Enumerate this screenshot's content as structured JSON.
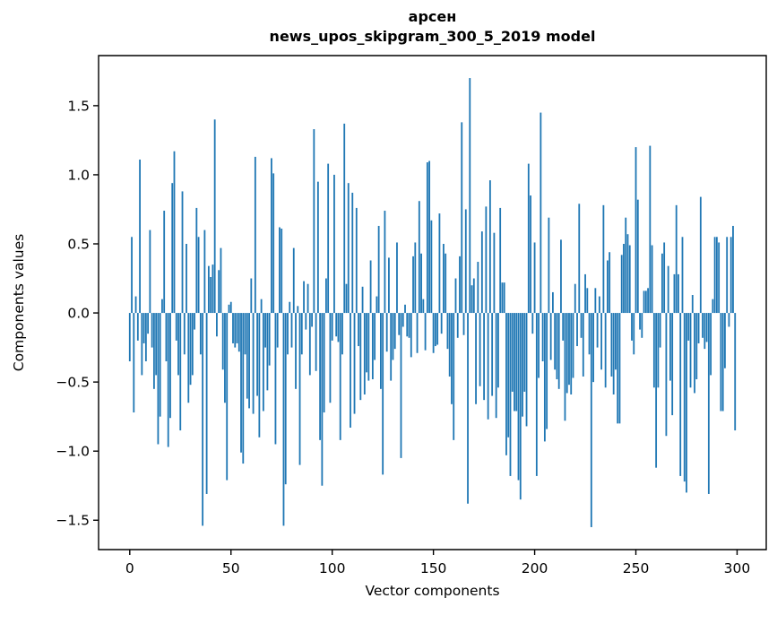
{
  "page": {
    "background": "#ffffff"
  },
  "chart_data": {
    "type": "bar",
    "title": "арсен",
    "subtitle": "news_upos_skipgram_300_5_2019 model",
    "xlabel": "Vector components",
    "ylabel": "Components values",
    "bar_color": "#1f77b4",
    "axis_color": "#000000",
    "grid": false,
    "legend_position": "none",
    "n_components": 300,
    "x_ticks": [
      0,
      50,
      100,
      150,
      200,
      250,
      300
    ],
    "y_ticks": [
      1.5,
      1.0,
      0.5,
      0.0,
      -0.5,
      -1.0,
      -1.5
    ],
    "y_tick_labels": [
      "1.5",
      "1.0",
      "0.5",
      "0.0",
      "−0.5",
      "−1.0",
      "−1.5"
    ],
    "xlim": [
      -15.4,
      314.4
    ],
    "ylim": [
      -1.7125,
      1.8625
    ],
    "values": [
      -0.35,
      0.55,
      -0.72,
      0.12,
      -0.2,
      1.11,
      -0.45,
      -0.22,
      -0.35,
      -0.15,
      0.6,
      -0.25,
      -0.55,
      -0.45,
      -0.95,
      -0.75,
      0.1,
      0.74,
      -0.35,
      -0.97,
      -0.76,
      0.94,
      1.17,
      -0.2,
      -0.45,
      -0.85,
      0.88,
      -0.3,
      0.5,
      -0.65,
      -0.52,
      -0.45,
      -0.12,
      0.76,
      0.55,
      -0.3,
      -1.54,
      0.6,
      -1.31,
      0.34,
      0.26,
      0.35,
      1.4,
      -0.17,
      0.31,
      0.47,
      -0.41,
      -0.65,
      -1.21,
      0.06,
      0.08,
      -0.22,
      -0.25,
      -0.22,
      -0.28,
      -1.01,
      -1.09,
      -0.3,
      -0.62,
      -0.69,
      0.25,
      -0.73,
      1.13,
      -0.6,
      -0.9,
      0.1,
      -0.71,
      -0.25,
      -0.56,
      -0.38,
      1.12,
      1.01,
      -0.95,
      -0.25,
      0.62,
      0.61,
      -1.54,
      -1.24,
      -0.3,
      0.08,
      -0.25,
      0.47,
      -0.55,
      0.05,
      -1.1,
      -0.3,
      0.23,
      -0.12,
      0.21,
      -0.45,
      -0.1,
      1.33,
      -0.42,
      0.95,
      -0.92,
      -1.25,
      -0.72,
      0.25,
      1.08,
      -0.65,
      -0.2,
      1.0,
      -0.17,
      -0.21,
      -0.92,
      -0.3,
      1.37,
      0.21,
      0.94,
      -0.83,
      0.87,
      -0.73,
      0.76,
      -0.24,
      -0.63,
      0.19,
      -0.59,
      -0.43,
      -0.49,
      0.38,
      -0.48,
      -0.34,
      0.12,
      0.63,
      -0.55,
      -1.17,
      0.74,
      -0.28,
      0.4,
      -0.49,
      -0.34,
      -0.26,
      0.51,
      -0.16,
      -1.05,
      -0.1,
      0.06,
      -0.17,
      -0.18,
      -0.32,
      0.41,
      0.51,
      -0.29,
      0.81,
      0.43,
      0.1,
      -0.27,
      1.09,
      1.1,
      0.67,
      -0.29,
      -0.24,
      -0.23,
      0.72,
      -0.15,
      0.5,
      0.43,
      -0.26,
      -0.46,
      -0.66,
      -0.92,
      0.25,
      -0.18,
      0.41,
      1.38,
      -0.16,
      0.75,
      -1.38,
      1.7,
      0.2,
      0.25,
      -0.66,
      0.37,
      -0.53,
      0.59,
      -0.63,
      0.77,
      -0.77,
      0.96,
      -0.6,
      0.58,
      -0.76,
      -0.54,
      0.76,
      0.22,
      0.22,
      -1.03,
      -0.9,
      -1.18,
      -0.57,
      -0.71,
      -0.71,
      -1.21,
      -1.35,
      -0.75,
      -0.57,
      -0.82,
      1.08,
      0.85,
      -0.15,
      0.51,
      -1.18,
      -0.47,
      1.45,
      -0.35,
      -0.93,
      -0.84,
      0.69,
      -0.34,
      0.15,
      -0.41,
      -0.48,
      -0.55,
      0.53,
      -0.2,
      -0.78,
      -0.58,
      -0.52,
      -0.59,
      -0.47,
      0.21,
      -0.24,
      0.79,
      -0.18,
      -0.46,
      0.28,
      0.18,
      -0.3,
      -1.55,
      -0.5,
      0.18,
      -0.25,
      0.12,
      -0.41,
      0.78,
      -0.54,
      0.38,
      0.44,
      -0.46,
      -0.59,
      -0.41,
      -0.8,
      -0.8,
      0.42,
      0.5,
      0.69,
      0.57,
      0.49,
      -0.2,
      -0.3,
      1.2,
      0.82,
      -0.12,
      -0.18,
      0.16,
      0.16,
      0.18,
      1.21,
      0.49,
      -0.54,
      -1.12,
      -0.54,
      -0.25,
      0.43,
      0.51,
      -0.89,
      0.34,
      -0.49,
      -0.74,
      0.28,
      0.78,
      0.28,
      -1.18,
      0.55,
      -1.22,
      -1.3,
      -0.2,
      -0.54,
      0.13,
      -0.58,
      -0.48,
      -0.22,
      0.84,
      -0.18,
      -0.26,
      -0.21,
      -1.31,
      -0.45,
      0.1,
      0.55,
      0.55,
      0.51,
      -0.71,
      -0.71,
      -0.4,
      0.55,
      -0.1,
      0.55,
      0.63,
      -0.85
    ]
  }
}
